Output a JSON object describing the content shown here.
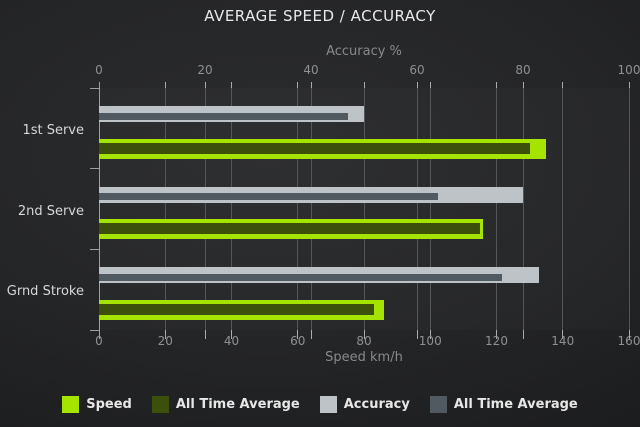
{
  "chart_data": {
    "type": "bar",
    "orientation": "horizontal",
    "title": "AVERAGE SPEED / ACCURACY",
    "categories": [
      "1st Serve",
      "2nd Serve",
      "Grnd Stroke"
    ],
    "axes": {
      "top": {
        "label": "Accuracy %",
        "min": 0,
        "max": 100,
        "ticks": [
          0,
          20,
          40,
          60,
          80,
          100
        ]
      },
      "bottom": {
        "label": "Speed km/h",
        "min": 0,
        "max": 160,
        "ticks": [
          0,
          20,
          40,
          60,
          80,
          100,
          120,
          140,
          160
        ]
      }
    },
    "series": [
      {
        "name": "Speed",
        "axis": "bottom",
        "color": "#a4e400",
        "role": "current",
        "values": [
          135,
          116,
          86
        ]
      },
      {
        "name": "All Time Average",
        "axis": "bottom",
        "color": "#3c500b",
        "role": "average",
        "values": [
          130,
          115,
          83
        ]
      },
      {
        "name": "Accuracy",
        "axis": "top",
        "color": "#bdc3c6",
        "role": "current",
        "values": [
          50,
          80,
          83
        ]
      },
      {
        "name": "All Time Average",
        "axis": "top",
        "color": "#525a61",
        "role": "average",
        "values": [
          47,
          64,
          76
        ]
      }
    ],
    "legend_position": "bottom",
    "grid": true,
    "style": {
      "background": "#1e1f21",
      "grid_color": "#53565a",
      "axis_color": "#9c9ea0",
      "tick_label_color": "#8e9093",
      "title_color": "#e9e9e9",
      "category_label_color": "#d6d7d8"
    }
  }
}
